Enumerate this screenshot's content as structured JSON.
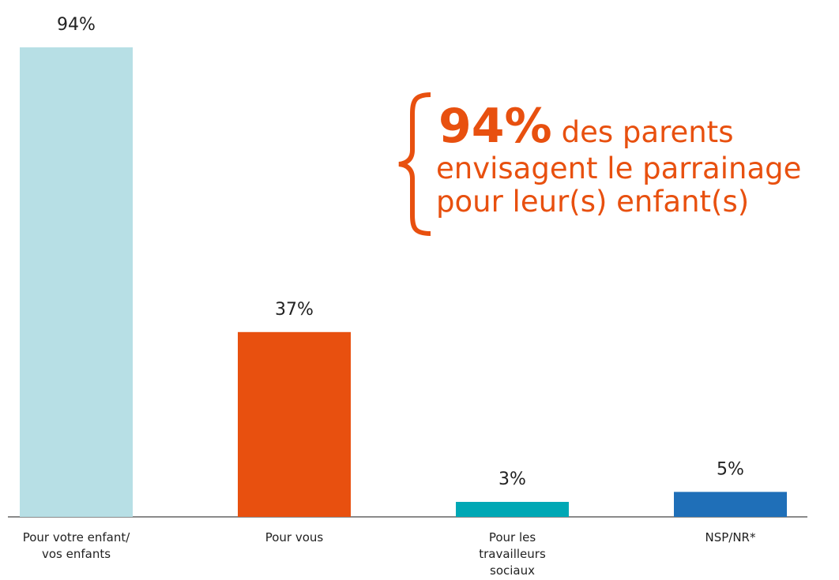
{
  "chart_data": {
    "type": "bar",
    "categories": [
      [
        "Pour votre enfant/",
        "vos enfants"
      ],
      [
        "Pour vous"
      ],
      [
        "Pour les",
        "travailleurs",
        "sociaux"
      ],
      [
        "NSP/NR*"
      ]
    ],
    "values": [
      94,
      37,
      3,
      5
    ],
    "value_labels": [
      "94%",
      "37%",
      "3%",
      "5%"
    ],
    "colors": [
      "#b7dfe5",
      "#e8500f",
      "#00a8b5",
      "#1f6fb8"
    ],
    "annotation": {
      "highlight": "94%",
      "lines": [
        "des parents",
        "envisagent le parrainage",
        "pour leur(s) enfant(s)"
      ],
      "color": "#e8500f"
    }
  }
}
